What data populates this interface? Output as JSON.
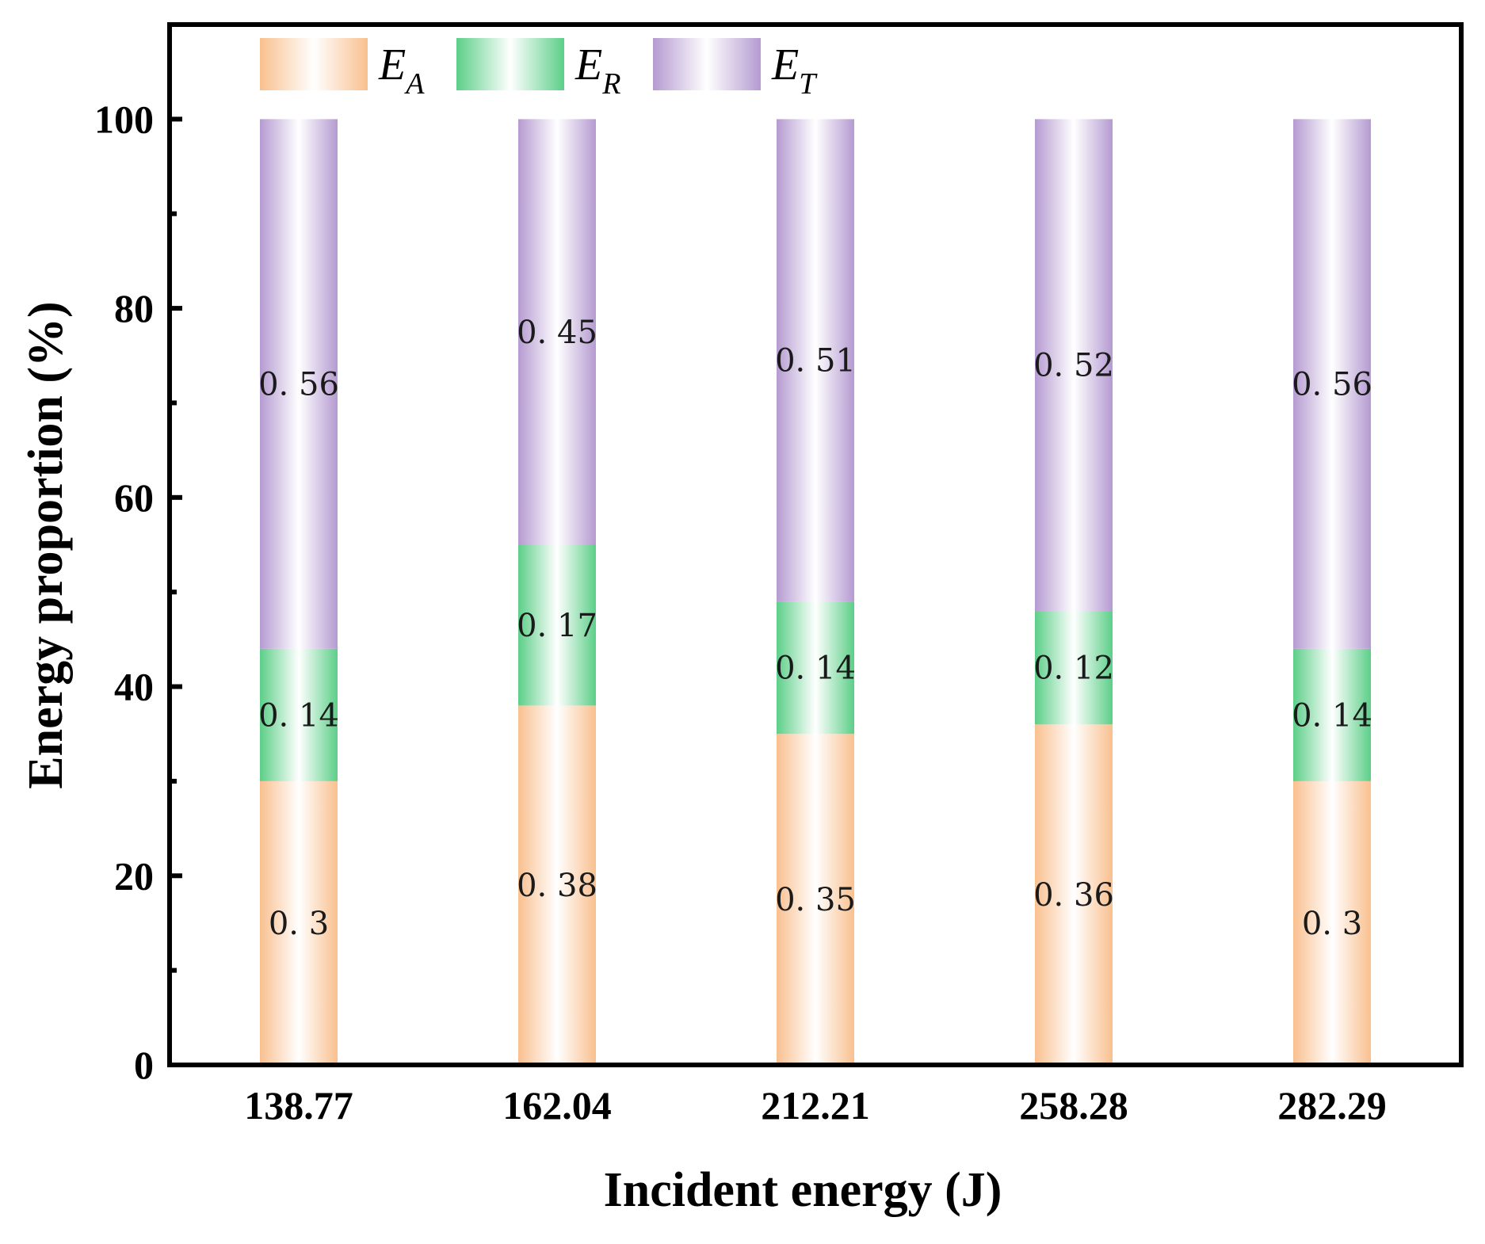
{
  "chart_data": {
    "type": "bar",
    "stacked": true,
    "title": "",
    "xlabel": "Incident energy (J)",
    "ylabel": "Energy proportion (%)",
    "ylim": [
      0,
      110
    ],
    "yticks": [
      0,
      20,
      40,
      60,
      80,
      100
    ],
    "categories": [
      "138.77",
      "162.04",
      "212.21",
      "258.28",
      "282.29"
    ],
    "legend_position": "top-left",
    "series": [
      {
        "name": "E_A",
        "legend_main": "E",
        "legend_sub": "A",
        "color": "#f9c08f",
        "values": [
          0.3,
          0.38,
          0.35,
          0.36,
          0.3
        ],
        "labels": [
          "0. 3",
          "0. 38",
          "0. 35",
          "0. 36",
          "0. 3"
        ]
      },
      {
        "name": "E_R",
        "legend_main": "E",
        "legend_sub": "R",
        "color": "#5ccf88",
        "values": [
          0.14,
          0.17,
          0.14,
          0.12,
          0.14
        ],
        "labels": [
          "0. 14",
          "0. 17",
          "0. 14",
          "0. 12",
          "0. 14"
        ]
      },
      {
        "name": "E_T",
        "legend_main": "E",
        "legend_sub": "T",
        "color": "#b59bd1",
        "values": [
          0.56,
          0.45,
          0.51,
          0.52,
          0.56
        ],
        "labels": [
          "0. 56",
          "0. 45",
          "0. 51",
          "0. 52",
          "0. 56"
        ]
      }
    ]
  }
}
